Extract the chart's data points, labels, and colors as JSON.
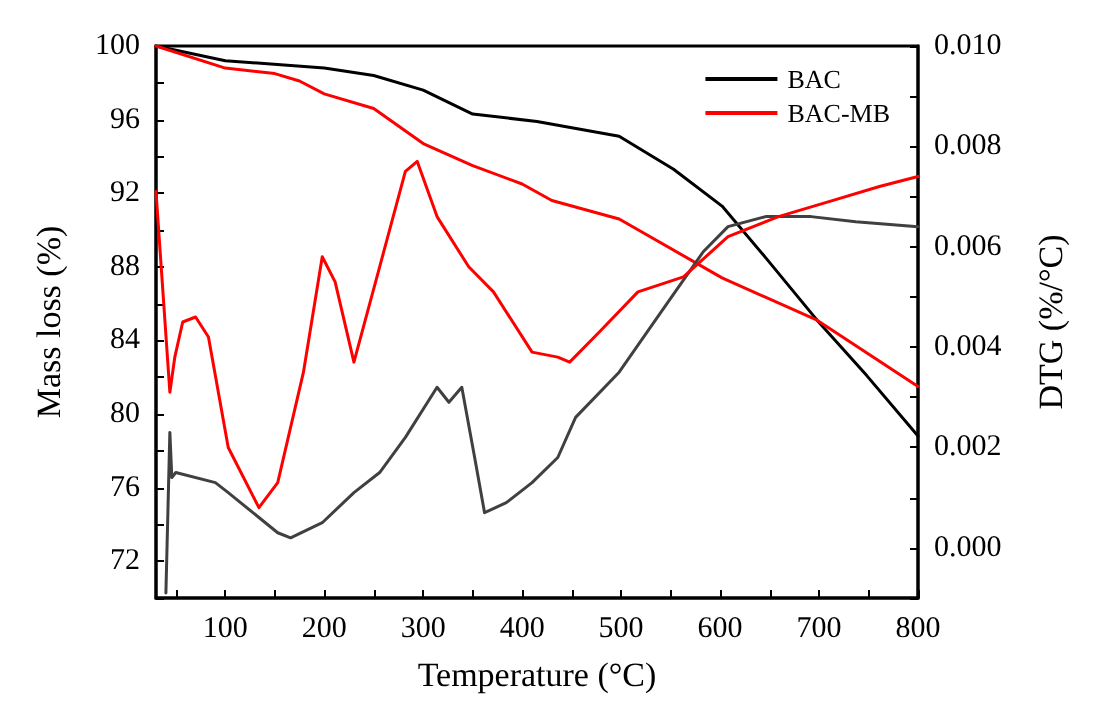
{
  "chart_data": {
    "type": "line",
    "xlabel": "Temperature (°C)",
    "ylabel": "Mass loss (%)",
    "y2label": "DTG (%/°C)",
    "xlim": [
      30,
      800
    ],
    "xticks": [
      {
        "value": 50,
        "label": null
      },
      100,
      {
        "value": 150,
        "label": null
      },
      200,
      {
        "value": 250,
        "label": null
      },
      300,
      {
        "value": 350,
        "label": null
      },
      400,
      {
        "value": 450,
        "label": null
      },
      500,
      {
        "value": 550,
        "label": null
      },
      600,
      {
        "value": 650,
        "label": null
      },
      700,
      {
        "value": 750,
        "label": null
      },
      800
    ],
    "ylim": [
      70,
      100
    ],
    "yticks": [
      {
        "value": 70,
        "label": null
      },
      72,
      {
        "value": 74,
        "label": null
      },
      76,
      {
        "value": 78,
        "label": null
      },
      80,
      {
        "value": 82,
        "label": null
      },
      84,
      {
        "value": 86,
        "label": null
      },
      88,
      {
        "value": 90,
        "label": null
      },
      92,
      {
        "value": 94,
        "label": null
      },
      96,
      {
        "value": 98,
        "label": null
      },
      100
    ],
    "y2lim": [
      -0.001,
      0.01
    ],
    "y2ticks": [
      {
        "value": -0.001,
        "label": null
      },
      {
        "value": 0,
        "label": "0.000"
      },
      {
        "value": 0.001,
        "label": null
      },
      {
        "value": 0.002,
        "label": "0.002"
      },
      {
        "value": 0.003,
        "label": null
      },
      {
        "value": 0.004,
        "label": "0.004"
      },
      {
        "value": 0.005,
        "label": null
      },
      {
        "value": 0.006,
        "label": "0.006"
      },
      {
        "value": 0.007,
        "label": null
      },
      {
        "value": 0.008,
        "label": "0.008"
      },
      {
        "value": 0.009,
        "label": null
      },
      {
        "value": 0.01,
        "label": "0.010"
      }
    ],
    "grid": false,
    "legend": "top right",
    "marker": "none",
    "line_style": "solid",
    "series": [
      {
        "name": "BAC",
        "color": "#000000",
        "x": [
          30,
          100,
          200,
          250,
          300,
          350,
          415,
          498,
          553,
          602,
          646,
          698,
          748,
          800
        ],
        "values": [
          100,
          99.2,
          98.8,
          98.4,
          97.6,
          96.3,
          95.9,
          95.1,
          93.3,
          91.3,
          88.5,
          85.1,
          82.1,
          78.8
        ]
      },
      {
        "name": "BAC-MB",
        "color": "#ff0000",
        "x": [
          30,
          100,
          150,
          175,
          200,
          250,
          300,
          350,
          400,
          430,
          498,
          602,
          698,
          800
        ],
        "values": [
          100,
          98.8,
          98.5,
          98.1,
          97.4,
          96.6,
          94.7,
          93.5,
          92.5,
          91.6,
          90.6,
          87.4,
          85.1,
          81.5
        ]
      },
      {
        "color": "#404040",
        "axis": "y2",
        "x": [
          40,
          44,
          46,
          50,
          90,
          103,
          153,
          166,
          198,
          230,
          256,
          282,
          314,
          326,
          339,
          352,
          362,
          384,
          410,
          436,
          454,
          498,
          544,
          583,
          608,
          646,
          692,
          737,
          800
        ],
        "values": [
          -0.0009,
          0.0023,
          0.0014,
          0.0015,
          0.0013,
          0.0011,
          0.0003,
          0.0002,
          0.0005,
          0.0011,
          0.0015,
          0.0022,
          0.0032,
          0.0029,
          0.0032,
          0.0018,
          0.0007,
          0.0009,
          0.0013,
          0.0018,
          0.0026,
          0.0035,
          0.0048,
          0.0059,
          0.0064,
          0.0066,
          0.0066,
          0.0065,
          0.0064
        ]
      },
      {
        "color": "#ff0000",
        "axis": "y2",
        "x": [
          30,
          44,
          49,
          57,
          70,
          83,
          103,
          134,
          153,
          179,
          198,
          211,
          230,
          256,
          282,
          294,
          314,
          346,
          371,
          410,
          436,
          448,
          478,
          517,
          563,
          608,
          659,
          710,
          761,
          800
        ],
        "values": [
          0.0071,
          0.0031,
          0.0038,
          0.0045,
          0.0046,
          0.0042,
          0.002,
          0.0008,
          0.0013,
          0.0035,
          0.0058,
          0.0053,
          0.0037,
          0.0056,
          0.0075,
          0.0077,
          0.0066,
          0.0056,
          0.0051,
          0.0039,
          0.0038,
          0.0037,
          0.0043,
          0.0051,
          0.0054,
          0.0062,
          0.0066,
          0.0069,
          0.0072,
          0.0074
        ]
      }
    ]
  }
}
